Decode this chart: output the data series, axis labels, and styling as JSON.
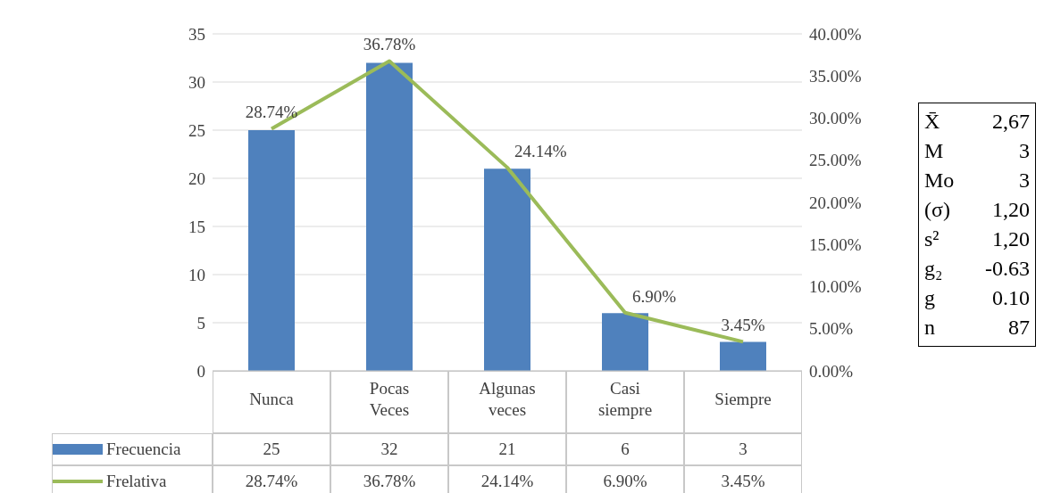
{
  "chart_data": [
    {
      "type": "bar",
      "categories": [
        "Nunca",
        "Pocas Veces",
        "Algunas veces",
        "Casi siempre",
        "Siempre"
      ],
      "series": [
        {
          "name": "Frecuencia",
          "color": "#4f81bd",
          "values": [
            25,
            32,
            21,
            6,
            3
          ],
          "value_labels": [
            "25",
            "32",
            "21",
            "6",
            "3"
          ]
        },
        {
          "name": "Frelativa",
          "type": "line",
          "axis": "y2",
          "color": "#9bbb59",
          "values": [
            28.74,
            36.78,
            24.14,
            6.9,
            3.45
          ],
          "value_labels": [
            "28.74%",
            "36.78%",
            "24.14%",
            "6.90%",
            "3.45%"
          ]
        }
      ],
      "ylim": [
        0,
        35
      ],
      "yticks": [
        0,
        5,
        10,
        15,
        20,
        25,
        30,
        35
      ],
      "y2lim": [
        0,
        40
      ],
      "y2ticks": [
        {
          "value": 0,
          "label": "0.00%"
        },
        {
          "value": 5,
          "label": "5.00%"
        },
        {
          "value": 10,
          "label": "10.00%"
        },
        {
          "value": 15,
          "label": "15.00%"
        },
        {
          "value": 20,
          "label": "20.00%"
        },
        {
          "value": 25,
          "label": "25.00%"
        },
        {
          "value": 30,
          "label": "30.00%"
        },
        {
          "value": 35,
          "label": "35.00%"
        },
        {
          "value": 40,
          "label": "40.00%"
        }
      ],
      "grid": "y",
      "legend": "bottom",
      "marker": "none"
    },
    {
      "type": "other",
      "annotations": [
        "X̄",
        "2,67",
        "M",
        "3",
        "Mo",
        "3",
        "(σ)",
        "1,20",
        "s²",
        "1,20",
        "g₂",
        "-0.63",
        "g",
        "0.10",
        "n",
        "87"
      ]
    }
  ]
}
